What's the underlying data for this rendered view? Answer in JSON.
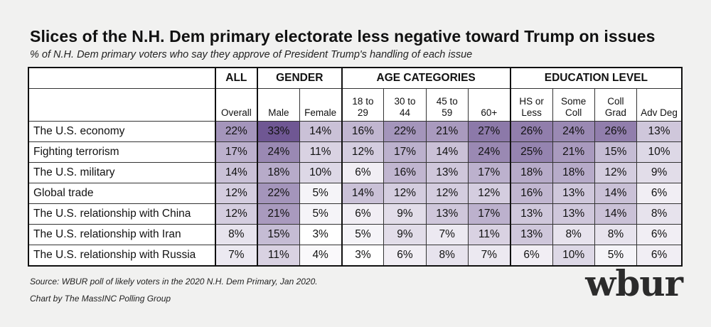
{
  "title": "Slices of the N.H. Dem primary electorate less negative toward Trump on issues",
  "subtitle": "% of N.H. Dem primary voters who say they approve of President Trump's handling of each issue",
  "source": "Source: WBUR poll of likely voters in the 2020 N.H. Dem Primary, Jan 2020.",
  "credit": "Chart by The MassINC Polling Group",
  "logo_text": "wbur",
  "colors": {
    "low": "#ffffff",
    "high": "#6f5793"
  },
  "chart_data": {
    "type": "table",
    "title": "Slices of the N.H. Dem primary electorate less negative toward Trump on issues",
    "subtitle": "% of N.H. Dem primary voters who say they approve of President Trump's handling of each issue",
    "groups": [
      {
        "label": "ALL",
        "span": 1
      },
      {
        "label": "GENDER",
        "span": 2
      },
      {
        "label": "AGE CATEGORIES",
        "span": 4
      },
      {
        "label": "EDUCATION LEVEL",
        "span": 4
      }
    ],
    "columns": [
      [
        "Overall"
      ],
      [
        "Male"
      ],
      [
        "Female"
      ],
      [
        "18 to",
        "29"
      ],
      [
        "30 to",
        "44"
      ],
      [
        "45 to",
        "59"
      ],
      [
        "60+"
      ],
      [
        "HS or",
        "Less"
      ],
      [
        "Some",
        "Coll"
      ],
      [
        "Coll",
        "Grad"
      ],
      [
        "Adv Deg"
      ]
    ],
    "rows": [
      {
        "label": "The U.S. economy",
        "values": [
          22,
          33,
          14,
          16,
          22,
          21,
          27,
          26,
          24,
          26,
          13
        ]
      },
      {
        "label": "Fighting terrorism",
        "values": [
          17,
          24,
          11,
          12,
          17,
          14,
          24,
          25,
          21,
          15,
          10
        ]
      },
      {
        "label": "The U.S. military",
        "values": [
          14,
          18,
          10,
          6,
          16,
          13,
          17,
          18,
          18,
          12,
          9
        ]
      },
      {
        "label": "Global trade",
        "values": [
          12,
          22,
          5,
          14,
          12,
          12,
          12,
          16,
          13,
          14,
          6
        ]
      },
      {
        "label": "The U.S. relationship with China",
        "values": [
          12,
          21,
          5,
          6,
          9,
          13,
          17,
          13,
          13,
          14,
          8
        ]
      },
      {
        "label": "The U.S. relationship with Iran",
        "values": [
          8,
          15,
          3,
          5,
          9,
          7,
          11,
          13,
          8,
          8,
          6
        ]
      },
      {
        "label": "The U.S. relationship with Russia",
        "values": [
          7,
          11,
          4,
          3,
          6,
          8,
          7,
          6,
          10,
          5,
          6
        ]
      }
    ],
    "unit": "%"
  }
}
